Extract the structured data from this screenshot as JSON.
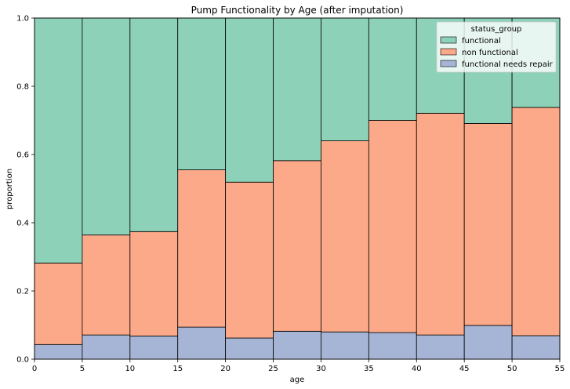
{
  "chart_data": {
    "type": "histogram-stacked-proportion",
    "title": "Pump Functionality by Age (after imputation)",
    "xlabel": "age",
    "ylabel": "proportion",
    "xlim": [
      0,
      55
    ],
    "ylim": [
      0,
      1.0
    ],
    "x_ticks": [
      0,
      5,
      10,
      15,
      20,
      25,
      30,
      35,
      40,
      45,
      50,
      55
    ],
    "y_ticks": [
      "0.0",
      "0.2",
      "0.4",
      "0.6",
      "0.8",
      "1.0"
    ],
    "y_tick_values": [
      0,
      0.2,
      0.4,
      0.6,
      0.8,
      1.0
    ],
    "bin_edges": [
      0,
      5,
      10,
      15,
      20,
      25,
      30,
      35,
      40,
      45,
      50,
      55
    ],
    "legend": {
      "title": "status_group",
      "placement": "top-right"
    },
    "series": [
      {
        "name": "functional needs repair",
        "color": "#a6b4d6",
        "values": [
          0.043,
          0.071,
          0.068,
          0.094,
          0.062,
          0.082,
          0.08,
          0.078,
          0.071,
          0.099,
          0.069
        ]
      },
      {
        "name": "non functional",
        "color": "#fba988",
        "values": [
          0.239,
          0.293,
          0.306,
          0.461,
          0.457,
          0.5,
          0.56,
          0.622,
          0.65,
          0.592,
          0.669
        ]
      },
      {
        "name": "functional",
        "color": "#8dd1b9",
        "values": [
          0.718,
          0.636,
          0.626,
          0.445,
          0.481,
          0.418,
          0.36,
          0.3,
          0.279,
          0.309,
          0.262
        ]
      }
    ],
    "legend_order": [
      "functional",
      "non functional",
      "functional needs repair"
    ]
  }
}
